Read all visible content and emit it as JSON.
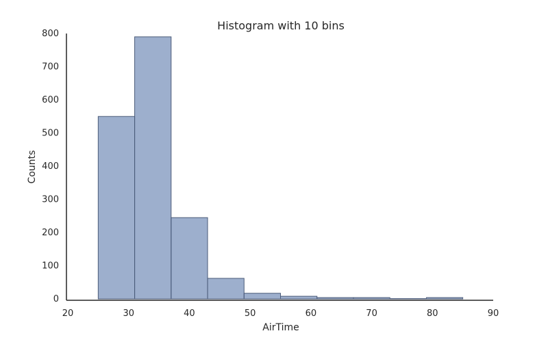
{
  "chart_data": {
    "type": "bar",
    "title": "Histogram with 10 bins",
    "xlabel": "AirTime",
    "ylabel": "Counts",
    "xlim": [
      20,
      90
    ],
    "ylim": [
      0,
      800
    ],
    "xticks": [
      20,
      30,
      40,
      50,
      60,
      70,
      80,
      90
    ],
    "yticks": [
      0,
      100,
      200,
      300,
      400,
      500,
      600,
      700,
      800
    ],
    "grid": false,
    "bins": [
      {
        "start": 25,
        "end": 31,
        "count": 550
      },
      {
        "start": 31,
        "end": 37,
        "count": 790
      },
      {
        "start": 37,
        "end": 43,
        "count": 245
      },
      {
        "start": 43,
        "end": 49,
        "count": 62
      },
      {
        "start": 49,
        "end": 55,
        "count": 17
      },
      {
        "start": 55,
        "end": 61,
        "count": 8
      },
      {
        "start": 61,
        "end": 67,
        "count": 4
      },
      {
        "start": 67,
        "end": 73,
        "count": 4
      },
      {
        "start": 73,
        "end": 79,
        "count": 1
      },
      {
        "start": 79,
        "end": 85,
        "count": 4
      }
    ],
    "colors": {
      "bar_fill": "#4c6ea4",
      "bar_edge": "#4a5a78",
      "axis": "#262626"
    }
  }
}
